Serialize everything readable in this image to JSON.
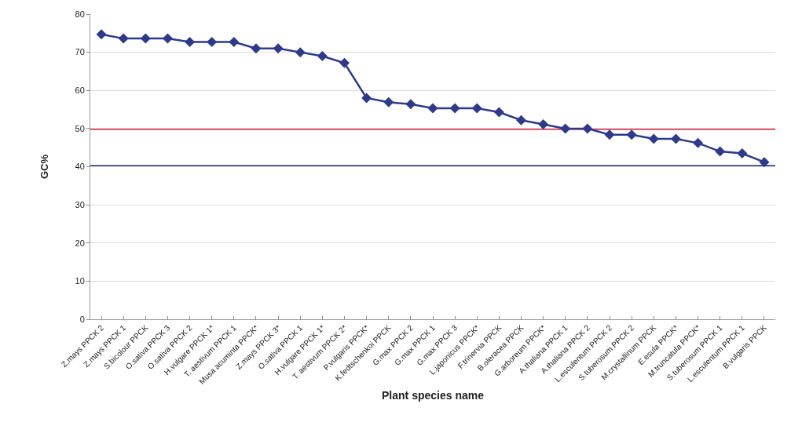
{
  "chart_data": {
    "type": "line",
    "xlabel": "Plant species name",
    "ylabel": "GC%",
    "categories": [
      "Z.mays PPCK 2",
      "Z.mays PPCK 1",
      "S.bicolour PPCK",
      "O.sativa PPCK 3",
      "O.sativa PPCK 2",
      "H.vulgare PPCK 1*",
      "T. aestivum PPCK 1",
      "Musa acuminta PPCK*",
      "Z.mays PPCK 3*",
      "O.sativa PPCK 1",
      "H.vulgare PPCK 1*",
      "T. aestivum PPCK 2*",
      "P.vulgaris PPCK*",
      "K.fedtschenkoi PPCK",
      "G.max PPCK 2",
      "G.max PPCK 1",
      "G.max PPCK 3",
      "L.japonicus PPCK*",
      "F.trinervia PPCK",
      "B.oleracea PPCK",
      "G.arboreum PPCK*",
      "A.thaliana PPCK 1",
      "A.thaliana PPCK 2",
      "L.esculentum PPCK 2",
      "S.tuberosum PPCK 2",
      "M.crystallinum PPCK",
      "E.esula PPCK*",
      "M.truncatula PPCK*",
      "S.tuberosum PPCK 1",
      "L.esculentum PPCK 1",
      "B.vulgaris PPCK"
    ],
    "series": [
      {
        "color": "#2e3a8c",
        "values": [
          74.7,
          73.6,
          73.6,
          73.6,
          72.7,
          72.7,
          72.7,
          71,
          71,
          70,
          69,
          67.2,
          58,
          56.9,
          56.4,
          55.3,
          55.3,
          55.3,
          54.3,
          52.2,
          51.1,
          50,
          50,
          48.4,
          48.4,
          47.3,
          47.3,
          46.2,
          44,
          43.5,
          41.2
        ]
      }
    ],
    "ylim": [
      0,
      80
    ],
    "yticks": [
      0,
      10,
      20,
      30,
      40,
      50,
      60,
      70,
      80
    ],
    "grid": "y",
    "marker": "diamond",
    "line_style": "solid",
    "ref_lines": [
      {
        "axis": "y",
        "value": 49.8,
        "color": "#e0405a"
      },
      {
        "axis": "y",
        "value": 40.2,
        "color": "#1f2a6b"
      }
    ]
  }
}
